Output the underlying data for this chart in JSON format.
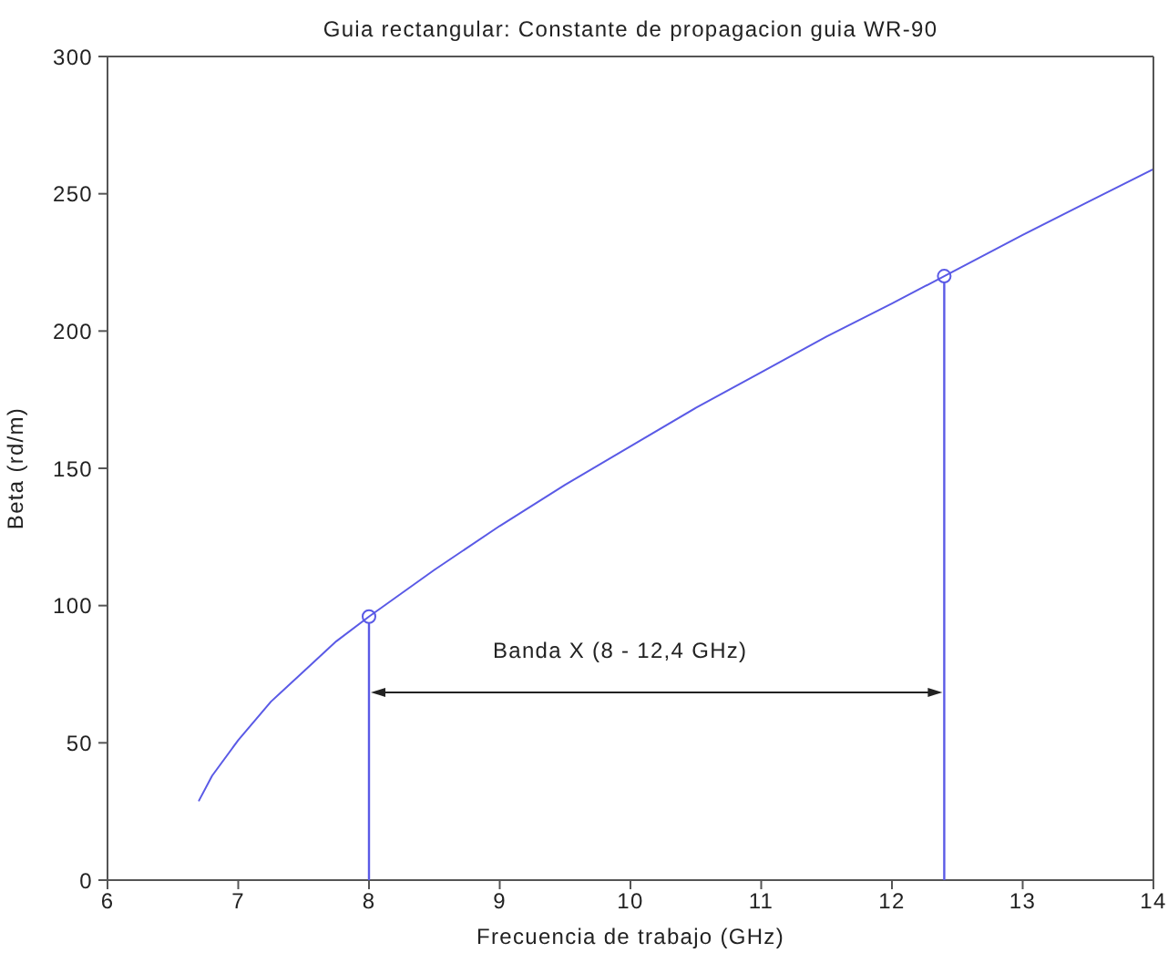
{
  "chart_data": {
    "type": "line",
    "title": "Guia rectangular: Constante de propagacion guia WR-90",
    "xlabel": "Frecuencia de trabajo (GHz)",
    "ylabel": "Beta (rd/m)",
    "xlim": [
      6,
      14
    ],
    "xticks": [
      6,
      7,
      8,
      9,
      10,
      11,
      12,
      13,
      14
    ],
    "ylim": [
      0,
      300
    ],
    "yticks": [
      0,
      50,
      100,
      150,
      200,
      250,
      300
    ],
    "series": [
      {
        "color": "#5a5ae6",
        "line_style": "solid",
        "x": [
          6.7,
          6.8,
          7,
          7.25,
          7.5,
          7.75,
          8,
          8.5,
          9,
          9.5,
          10,
          10.5,
          11,
          11.5,
          12,
          12.4,
          13,
          13.5,
          14
        ],
        "values": [
          29,
          38,
          51,
          65,
          76,
          87,
          96,
          113,
          129,
          144,
          158,
          172,
          185,
          198,
          210,
          220,
          235,
          247,
          259
        ]
      },
      {
        "type": "lollipop",
        "color": "#5a5ae6",
        "marker": "circle",
        "x": [
          8,
          12.4
        ],
        "values": [
          96,
          220
        ]
      }
    ],
    "annotations": [
      "Banda X (8 - 12,4 GHz)"
    ]
  }
}
